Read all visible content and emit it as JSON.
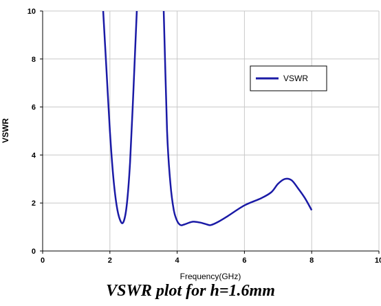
{
  "caption": "VSWR plot for h=1.6mm",
  "chart_data": {
    "type": "line",
    "xlabel": "Frequency(GHz)",
    "ylabel": "VSWR",
    "xlim": [
      0,
      10
    ],
    "ylim": [
      0,
      10
    ],
    "xticks": [
      "0",
      "2",
      "4",
      "6",
      "8",
      "10"
    ],
    "yticks": [
      "0",
      "2",
      "4",
      "6",
      "8",
      "10"
    ],
    "grid": true,
    "legend_position": "right",
    "series": [
      {
        "name": "VSWR",
        "color": "#1a1aa6",
        "x": [
          1.8,
          1.9,
          2.0,
          2.1,
          2.2,
          2.3,
          2.4,
          2.5,
          2.6,
          2.7,
          2.8,
          2.85,
          2.9,
          2.95,
          3.0,
          3.05,
          3.1,
          3.15,
          3.2,
          3.25,
          3.3,
          3.35,
          3.4,
          3.45,
          3.5,
          3.55,
          3.6,
          3.7,
          3.8,
          3.9,
          4.0,
          4.1,
          4.2,
          4.3,
          4.4,
          4.5,
          4.7,
          4.9,
          5.0,
          5.2,
          5.5,
          6.0,
          6.5,
          6.8,
          7.0,
          7.2,
          7.4,
          7.6,
          7.8,
          8.0
        ],
        "y": [
          10.0,
          7.5,
          5.0,
          3.1,
          1.9,
          1.3,
          1.2,
          1.9,
          3.7,
          6.7,
          10.0,
          11,
          11,
          11,
          11,
          11,
          11,
          11,
          11,
          11,
          11,
          11,
          11,
          11,
          11,
          10.7,
          10.0,
          5.0,
          2.8,
          1.7,
          1.25,
          1.08,
          1.1,
          1.15,
          1.2,
          1.22,
          1.18,
          1.1,
          1.08,
          1.2,
          1.45,
          1.9,
          2.2,
          2.45,
          2.8,
          3.0,
          2.95,
          2.6,
          2.2,
          1.7
        ]
      }
    ]
  }
}
